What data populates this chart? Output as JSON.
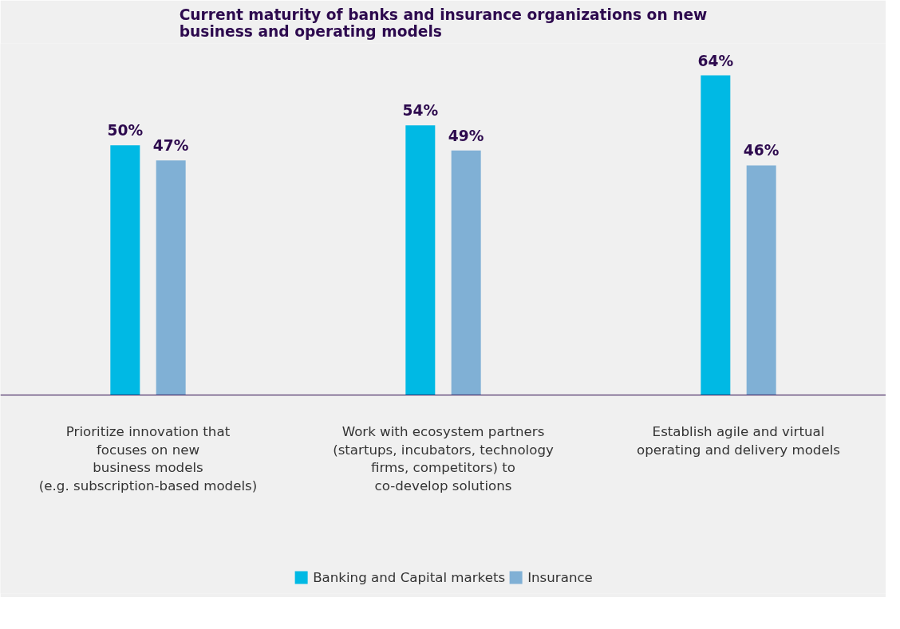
{
  "chart_data": {
    "type": "bar",
    "title": "Current maturity of banks and insurance organizations on new\nbusiness and operating models",
    "categories": [
      "Prioritize innovation that\nfocuses on new\nbusiness models\n(e.g. subscription-based models)",
      "Work with ecosystem partners\n(startups, incubators, technology\nfirms, competitors) to\nco-develop solutions",
      "Establish agile and virtual\noperating and delivery models"
    ],
    "series": [
      {
        "name": "Banking and Capital markets",
        "color": "#00b9e4",
        "values": [
          50,
          54,
          64
        ],
        "value_labels": [
          "50%",
          "54%",
          "64%"
        ]
      },
      {
        "name": "Insurance",
        "color": "#80b0d5",
        "values": [
          47,
          49,
          46
        ],
        "value_labels": [
          "47%",
          "49%",
          "46%"
        ]
      }
    ],
    "legend": "bottom",
    "grid": false
  }
}
